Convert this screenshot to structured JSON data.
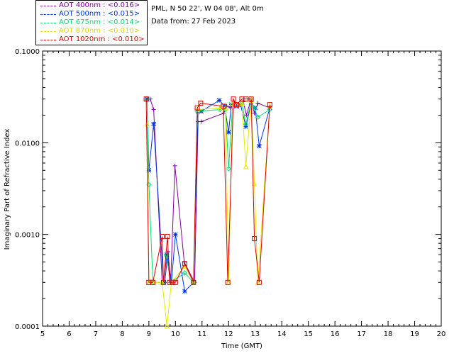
{
  "header": {
    "site": "PML, N 50 22', W 04 08', Alt 0m",
    "date": "Data from: 27 Feb 2023"
  },
  "legend": [
    {
      "label": "AOT  400nm : <0.016>",
      "color": "#7f00a0"
    },
    {
      "label": "AOT  500nm : <0.015>",
      "color": "#0033dd"
    },
    {
      "label": "AOT  675nm : <0.014>",
      "color": "#00dd77"
    },
    {
      "label": "AOT  870nm : <0.010>",
      "color": "#e8e800"
    },
    {
      "label": "AOT 1020nm : <0.010>",
      "color": "#dd0000"
    }
  ],
  "chart_data": {
    "type": "line",
    "title": "",
    "xlabel": "Time (GMT)",
    "ylabel": "Imaginary Part of Refractive Index",
    "xlim": [
      5,
      20
    ],
    "ylim": [
      0.0001,
      0.1
    ],
    "yscale": "log",
    "xticks": [
      "5",
      "6",
      "7",
      "8",
      "9",
      "10",
      "11",
      "12",
      "13",
      "14",
      "15",
      "16",
      "17",
      "18",
      "19",
      "20"
    ],
    "yticks": [
      "0.0001",
      "0.0010",
      "0.0100",
      "0.1000"
    ],
    "series": [
      {
        "name": "AOT 400nm",
        "color": "#7f00a0",
        "marker": "plus",
        "x": [
          8.93,
          9.05,
          9.18,
          9.5,
          9.6,
          9.72,
          9.82,
          9.98,
          10.33,
          10.72,
          10.85,
          10.97,
          11.82,
          11.93,
          12.08,
          12.22,
          12.38,
          12.55,
          12.67,
          12.85,
          12.97,
          13.1,
          13.55
        ],
        "y": [
          0.03,
          0.03,
          0.023,
          0.0003,
          0.0003,
          0.00065,
          0.0003,
          0.0056,
          0.0005,
          0.0003,
          0.017,
          0.017,
          0.021,
          0.025,
          0.024,
          0.027,
          0.025,
          0.028,
          0.02,
          0.03,
          0.021,
          0.027,
          0.024
        ]
      },
      {
        "name": "AOT 500nm",
        "color": "#0033dd",
        "marker": "star",
        "x": [
          8.93,
          9.0,
          9.18,
          9.55,
          9.68,
          9.85,
          10.0,
          10.35,
          10.68,
          10.85,
          10.97,
          11.65,
          11.85,
          12.0,
          12.1,
          12.28,
          12.45,
          12.65,
          12.85,
          13.0,
          13.15,
          13.55
        ],
        "y": [
          0.03,
          0.005,
          0.016,
          0.0003,
          0.0006,
          0.0003,
          0.001,
          0.00024,
          0.0003,
          0.022,
          0.022,
          0.029,
          0.025,
          0.013,
          0.026,
          0.025,
          0.026,
          0.015,
          0.027,
          0.024,
          0.0092,
          0.024
        ]
      },
      {
        "name": "AOT 675nm",
        "color": "#00dd77",
        "marker": "diamond",
        "x": [
          8.93,
          9.0,
          9.15,
          9.55,
          9.65,
          9.82,
          10.35,
          10.68,
          10.82,
          11.68,
          11.88,
          12.0,
          12.15,
          12.3,
          12.5,
          12.65,
          12.85,
          12.97,
          13.1,
          13.55
        ],
        "y": [
          0.03,
          0.0035,
          0.0003,
          0.0003,
          0.0006,
          0.0003,
          0.00038,
          0.0003,
          0.022,
          0.023,
          0.023,
          0.0052,
          0.026,
          0.026,
          0.027,
          0.016,
          0.028,
          0.024,
          0.019,
          0.023
        ]
      },
      {
        "name": "AOT 870nm",
        "color": "#e8e800",
        "marker": "triangle",
        "x": [
          8.93,
          9.0,
          9.15,
          9.5,
          9.68,
          9.85,
          10.35,
          10.68,
          10.82,
          11.68,
          11.88,
          12.0,
          12.15,
          12.3,
          12.5,
          12.65,
          12.85,
          12.97,
          13.1,
          13.55
        ],
        "y": [
          0.016,
          0.0003,
          0.0003,
          0.0003,
          0.0001,
          0.0003,
          0.00045,
          0.0003,
          0.023,
          0.024,
          0.024,
          0.0003,
          0.027,
          0.026,
          0.027,
          0.0055,
          0.029,
          0.0036,
          0.0003,
          0.025
        ]
      },
      {
        "name": "AOT 1020nm",
        "color": "#dd0000",
        "marker": "square",
        "x": [
          8.9,
          9.0,
          9.15,
          9.5,
          9.55,
          9.7,
          9.78,
          9.9,
          10.0,
          10.35,
          10.68,
          10.82,
          10.95,
          11.8,
          11.97,
          12.18,
          12.3,
          12.5,
          12.65,
          12.85,
          12.97,
          13.15,
          13.55
        ],
        "y": [
          0.03,
          0.0003,
          0.0003,
          0.00095,
          0.0003,
          0.00095,
          0.0003,
          0.0003,
          0.0003,
          0.00048,
          0.0003,
          0.024,
          0.027,
          0.025,
          0.0003,
          0.03,
          0.026,
          0.03,
          0.03,
          0.03,
          0.0009,
          0.0003,
          0.026
        ]
      }
    ]
  }
}
